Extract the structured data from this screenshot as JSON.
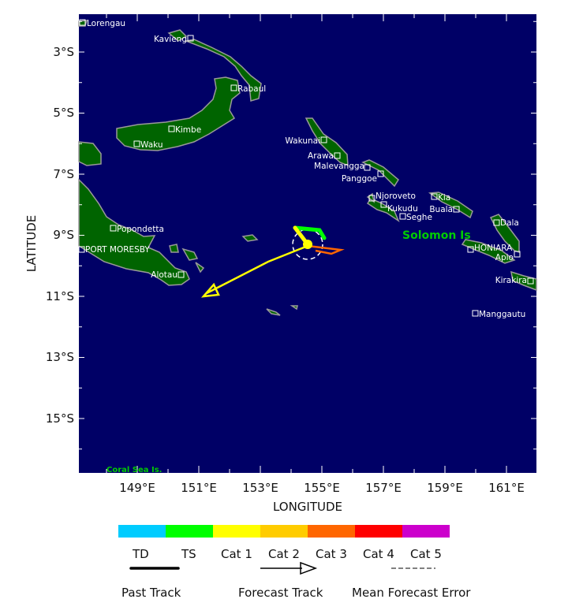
{
  "map": {
    "ocean_color": "#000066",
    "land_color": "#006400",
    "coast_color": "#999999",
    "x_axis_label": "LONGITUDE",
    "y_axis_label": "LATITUDE",
    "lon_ticks": [
      "149°E",
      "151°E",
      "153°E",
      "155°E",
      "157°E",
      "159°E",
      "161°E"
    ],
    "lat_ticks": [
      "3°S",
      "5°S",
      "7°S",
      "9°S",
      "11°S",
      "13°S",
      "15°S"
    ],
    "region_labels": {
      "solomon": "Solomon Is",
      "coral_sea": "Coral Sea Is."
    },
    "places": [
      "Lorengau",
      "Kavieng",
      "Rabaul",
      "Kimbe",
      "Waku",
      "Wakunai",
      "Arawa",
      "Malevangga",
      "Panggoe",
      "Njoroveto",
      "Kukudu",
      "Seghe",
      "Kia",
      "Buala",
      "Dala",
      "HONIARA",
      "Apio",
      "Kirakira",
      "Manggautu",
      "Popondetta",
      "PORT MORESBY",
      "Alotau"
    ]
  },
  "storm": {
    "current_position": {
      "lon": 154.5,
      "lat": -9.3
    },
    "past_track_colors": [
      "#00ff00",
      "#ffff00"
    ],
    "forecast_color": "#ffff00",
    "forecast_alt_color": "#ff6600"
  },
  "legend": {
    "categories": [
      {
        "label": "TD",
        "color": "#00ccff"
      },
      {
        "label": "TS",
        "color": "#00ff00"
      },
      {
        "label": "Cat 1",
        "color": "#ffff00"
      },
      {
        "label": "Cat 2",
        "color": "#ffcc00"
      },
      {
        "label": "Cat 3",
        "color": "#ff6600"
      },
      {
        "label": "Cat 4",
        "color": "#ff0000"
      },
      {
        "label": "Cat 5",
        "color": "#cc00cc"
      }
    ],
    "past_track": "Past Track",
    "forecast_track": "Forecast Track",
    "mean_error": "Mean Forecast Error"
  }
}
